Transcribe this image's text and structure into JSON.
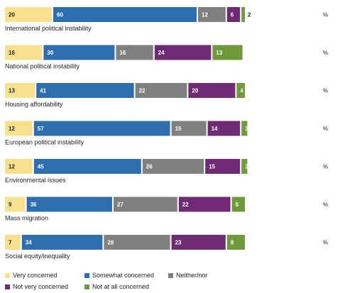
{
  "chart_data": {
    "type": "bar",
    "orientation": "horizontal",
    "stacked": true,
    "unit_label": "%",
    "categories": [
      "International political instability",
      "National political instability",
      "Housing affordability",
      "European political instability",
      "Environmental issues",
      "Mass migration",
      "Social equity/inequality"
    ],
    "series": [
      {
        "name": "Very concerned",
        "color": "#f9e08e",
        "text_color": "#222222",
        "values": [
          20,
          16,
          13,
          12,
          12,
          9,
          7
        ]
      },
      {
        "name": "Somewhat concerned",
        "color": "#2d6fae",
        "text_color": "#ffffff",
        "values": [
          60,
          30,
          41,
          57,
          45,
          36,
          34
        ]
      },
      {
        "name": "Neither/nor",
        "color": "#808080",
        "text_color": "#ffffff",
        "values": [
          12,
          16,
          22,
          15,
          26,
          27,
          28
        ]
      },
      {
        "name": "Not very concerned",
        "color": "#6e2a72",
        "text_color": "#ffffff",
        "values": [
          6,
          24,
          20,
          14,
          15,
          22,
          23
        ]
      },
      {
        "name": "Not at all concerned",
        "color": "#6f9a3a",
        "text_color": "#ffffff",
        "values": [
          2,
          13,
          4,
          3,
          3,
          6,
          8
        ]
      }
    ],
    "legend_placement": "bottom",
    "grid": false
  }
}
